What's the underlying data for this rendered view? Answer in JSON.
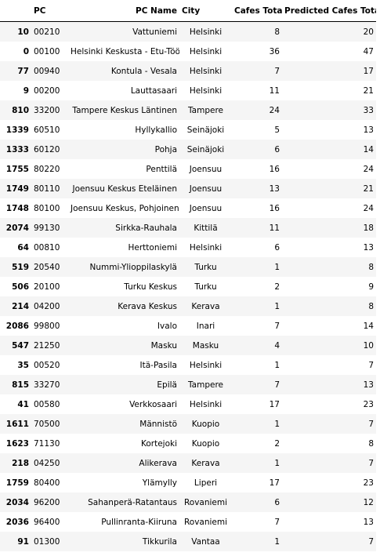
{
  "table": {
    "columns": {
      "index": "",
      "pc": "PC",
      "pc_name": "PC Name",
      "city": "City",
      "cafes_total": "Cafes Total",
      "predicted_cafes_total": "Predicted Cafes Total"
    },
    "rows": [
      {
        "index": "10",
        "pc": "00210",
        "pc_name": "Vattuniemi",
        "city": "Helsinki",
        "cafes_total": "8",
        "predicted": "20"
      },
      {
        "index": "0",
        "pc": "00100",
        "pc_name": "Helsinki Keskusta - Etu-Töölö",
        "city": "Helsinki",
        "cafes_total": "36",
        "predicted": "47"
      },
      {
        "index": "77",
        "pc": "00940",
        "pc_name": "Kontula - Vesala",
        "city": "Helsinki",
        "cafes_total": "7",
        "predicted": "17"
      },
      {
        "index": "9",
        "pc": "00200",
        "pc_name": "Lauttasaari",
        "city": "Helsinki",
        "cafes_total": "11",
        "predicted": "21"
      },
      {
        "index": "810",
        "pc": "33200",
        "pc_name": "Tampere Keskus Läntinen",
        "city": "Tampere",
        "cafes_total": "24",
        "predicted": "33"
      },
      {
        "index": "1339",
        "pc": "60510",
        "pc_name": "Hyllykallio",
        "city": "Seinäjoki",
        "cafes_total": "5",
        "predicted": "13"
      },
      {
        "index": "1333",
        "pc": "60120",
        "pc_name": "Pohja",
        "city": "Seinäjoki",
        "cafes_total": "6",
        "predicted": "14"
      },
      {
        "index": "1755",
        "pc": "80220",
        "pc_name": "Penttilä",
        "city": "Joensuu",
        "cafes_total": "16",
        "predicted": "24"
      },
      {
        "index": "1749",
        "pc": "80110",
        "pc_name": "Joensuu Keskus Eteläinen",
        "city": "Joensuu",
        "cafes_total": "13",
        "predicted": "21"
      },
      {
        "index": "1748",
        "pc": "80100",
        "pc_name": "Joensuu Keskus, Pohjoinen",
        "city": "Joensuu",
        "cafes_total": "16",
        "predicted": "24"
      },
      {
        "index": "2074",
        "pc": "99130",
        "pc_name": "Sirkka-Rauhala",
        "city": "Kittilä",
        "cafes_total": "11",
        "predicted": "18"
      },
      {
        "index": "64",
        "pc": "00810",
        "pc_name": "Herttoniemi",
        "city": "Helsinki",
        "cafes_total": "6",
        "predicted": "13"
      },
      {
        "index": "519",
        "pc": "20540",
        "pc_name": "Nummi-Ylioppilaskylä",
        "city": "Turku",
        "cafes_total": "1",
        "predicted": "8"
      },
      {
        "index": "506",
        "pc": "20100",
        "pc_name": "Turku Keskus",
        "city": "Turku",
        "cafes_total": "2",
        "predicted": "9"
      },
      {
        "index": "214",
        "pc": "04200",
        "pc_name": "Kerava Keskus",
        "city": "Kerava",
        "cafes_total": "1",
        "predicted": "8"
      },
      {
        "index": "2086",
        "pc": "99800",
        "pc_name": "Ivalo",
        "city": "Inari",
        "cafes_total": "7",
        "predicted": "14"
      },
      {
        "index": "547",
        "pc": "21250",
        "pc_name": "Masku",
        "city": "Masku",
        "cafes_total": "4",
        "predicted": "10"
      },
      {
        "index": "35",
        "pc": "00520",
        "pc_name": "Itä-Pasila",
        "city": "Helsinki",
        "cafes_total": "1",
        "predicted": "7"
      },
      {
        "index": "815",
        "pc": "33270",
        "pc_name": "Epilä",
        "city": "Tampere",
        "cafes_total": "7",
        "predicted": "13"
      },
      {
        "index": "41",
        "pc": "00580",
        "pc_name": "Verkkosaari",
        "city": "Helsinki",
        "cafes_total": "17",
        "predicted": "23"
      },
      {
        "index": "1611",
        "pc": "70500",
        "pc_name": "Männistö",
        "city": "Kuopio",
        "cafes_total": "1",
        "predicted": "7"
      },
      {
        "index": "1623",
        "pc": "71130",
        "pc_name": "Kortejoki",
        "city": "Kuopio",
        "cafes_total": "2",
        "predicted": "8"
      },
      {
        "index": "218",
        "pc": "04250",
        "pc_name": "Alikerava",
        "city": "Kerava",
        "cafes_total": "1",
        "predicted": "7"
      },
      {
        "index": "1759",
        "pc": "80400",
        "pc_name": "Ylämylly",
        "city": "Liperi",
        "cafes_total": "17",
        "predicted": "23"
      },
      {
        "index": "2034",
        "pc": "96200",
        "pc_name": "Sahanperä-Ratantaus",
        "city": "Rovaniemi",
        "cafes_total": "6",
        "predicted": "12"
      },
      {
        "index": "2036",
        "pc": "96400",
        "pc_name": "Pullinranta-Kiiruna",
        "city": "Rovaniemi",
        "cafes_total": "7",
        "predicted": "13"
      },
      {
        "index": "91",
        "pc": "01300",
        "pc_name": "Tikkurila",
        "city": "Vantaa",
        "cafes_total": "1",
        "predicted": "7"
      }
    ]
  }
}
